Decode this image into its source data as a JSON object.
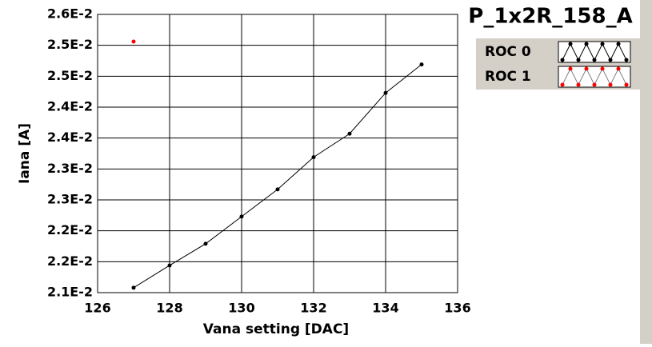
{
  "chart_data": {
    "type": "line",
    "title": "P_1x2R_158_A",
    "x_label": "Vana setting [DAC]",
    "y_label": "Iana [A]",
    "x": [
      127,
      128,
      129,
      130,
      131,
      132,
      133,
      134,
      135
    ],
    "series": [
      {
        "name": "ROC 0",
        "color": "#000000",
        "values": [
          0.02108,
          0.02144,
          0.02179,
          0.02223,
          0.02267,
          0.02319,
          0.02357,
          0.02423,
          0.02469
        ]
      },
      {
        "name": "ROC 1",
        "color": "#ff0000",
        "values": [
          0.02506,
          null,
          null,
          null,
          null,
          null,
          null,
          null,
          null
        ]
      }
    ],
    "xlim": [
      126,
      136
    ],
    "xticks": [
      126,
      128,
      130,
      132,
      134,
      136
    ],
    "ylim": [
      0.021,
      0.0255
    ],
    "yticks": [
      {
        "value": 0.021,
        "label": "2.1E-2"
      },
      {
        "value": 0.0215,
        "label": "2.2E-2"
      },
      {
        "value": 0.022,
        "label": "2.2E-2"
      },
      {
        "value": 0.0225,
        "label": "2.3E-2"
      },
      {
        "value": 0.023,
        "label": "2.3E-2"
      },
      {
        "value": 0.0235,
        "label": "2.4E-2"
      },
      {
        "value": 0.024,
        "label": "2.4E-2"
      },
      {
        "value": 0.0245,
        "label": "2.5E-2"
      },
      {
        "value": 0.025,
        "label": "2.5E-2"
      },
      {
        "value": 0.0255,
        "label": "2.6E-2"
      }
    ],
    "grid": true
  }
}
